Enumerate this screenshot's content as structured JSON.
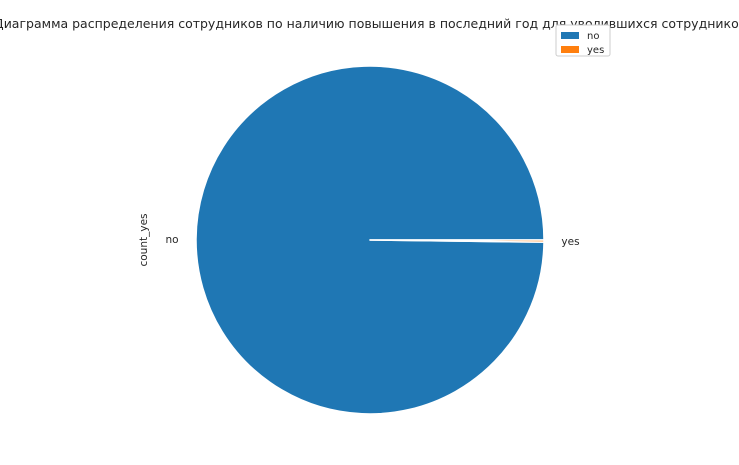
{
  "chart_data": {
    "type": "pie",
    "title": "Диаграмма распределения сотрудников по наличию повышения в последний год для уволившихся сотрудников",
    "ylabel": "count_yes",
    "slices": [
      {
        "label": "no",
        "value": 99.8,
        "color": "#1f77b4"
      },
      {
        "label": "yes",
        "value": 0.2,
        "color": "#ff7f0e"
      }
    ],
    "legend": {
      "position": "top-right",
      "entries": [
        "no",
        "yes"
      ]
    }
  }
}
